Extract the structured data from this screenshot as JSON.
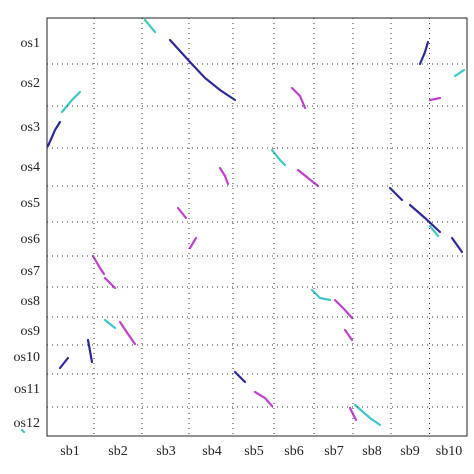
{
  "chart_data": {
    "type": "dotplot",
    "x_categories": [
      "sb1",
      "sb2",
      "sb3",
      "sb4",
      "sb5",
      "sb6",
      "sb7",
      "sb8",
      "sb9",
      "sb10"
    ],
    "y_categories": [
      "os1",
      "os2",
      "os3",
      "os4",
      "os5",
      "os6",
      "os7",
      "os8",
      "os9",
      "os10",
      "os11",
      "os12"
    ],
    "grid": true
  }
}
